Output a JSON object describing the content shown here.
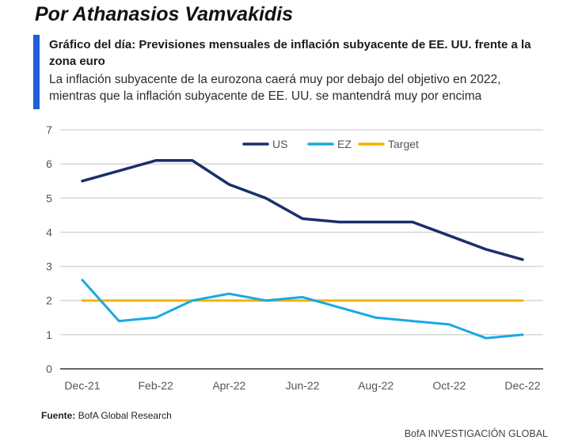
{
  "author": "Por Athanasios Vamvakidis",
  "source": {
    "label": "Fuente:",
    "text": "BofA Global Research"
  },
  "credit": "BofA INVESTIGACIÓN GLOBAL",
  "colors": {
    "accent_bar": "#1d5fd6",
    "us": "#1a2f6b",
    "ez": "#18a8e6",
    "target": "#f5b400",
    "grid": "#d9d9d9"
  },
  "chart_data": {
    "type": "line",
    "title": "Gráfico del día: Previsiones mensuales de inflación subyacente de EE. UU. frente a la zona euro",
    "subtitle": "La inflación subyacente de la eurozona caerá muy por debajo del objetivo en 2022, mientras que la inflación subyacente de EE. UU. se mantendrá muy por encima",
    "xlabel": "",
    "ylabel": "",
    "x": [
      "Dec-21",
      "Jan-22",
      "Feb-22",
      "Mar-22",
      "Apr-22",
      "May-22",
      "Jun-22",
      "Jul-22",
      "Aug-22",
      "Sep-22",
      "Oct-22",
      "Nov-22",
      "Dec-22"
    ],
    "x_tick_labels": [
      "Dec-21",
      "Feb-22",
      "Apr-22",
      "Jun-22",
      "Aug-22",
      "Oct-22",
      "Dec-22"
    ],
    "ylim": [
      0,
      7
    ],
    "y_ticks": [
      0,
      1,
      2,
      3,
      4,
      5,
      6,
      7
    ],
    "grid": true,
    "legend_position": "top-center",
    "series": [
      {
        "name": "US",
        "color": "#1a2f6b",
        "values": [
          5.5,
          5.8,
          6.1,
          6.1,
          5.4,
          5.0,
          4.4,
          4.3,
          4.3,
          4.3,
          3.9,
          3.5,
          3.2
        ]
      },
      {
        "name": "EZ",
        "color": "#18a8e6",
        "values": [
          2.6,
          1.4,
          1.5,
          2.0,
          2.2,
          2.0,
          2.1,
          1.8,
          1.5,
          1.4,
          1.3,
          0.9,
          1.0
        ]
      },
      {
        "name": "Target",
        "color": "#f5b400",
        "values": [
          2.0,
          2.0,
          2.0,
          2.0,
          2.0,
          2.0,
          2.0,
          2.0,
          2.0,
          2.0,
          2.0,
          2.0,
          2.0
        ]
      }
    ]
  }
}
